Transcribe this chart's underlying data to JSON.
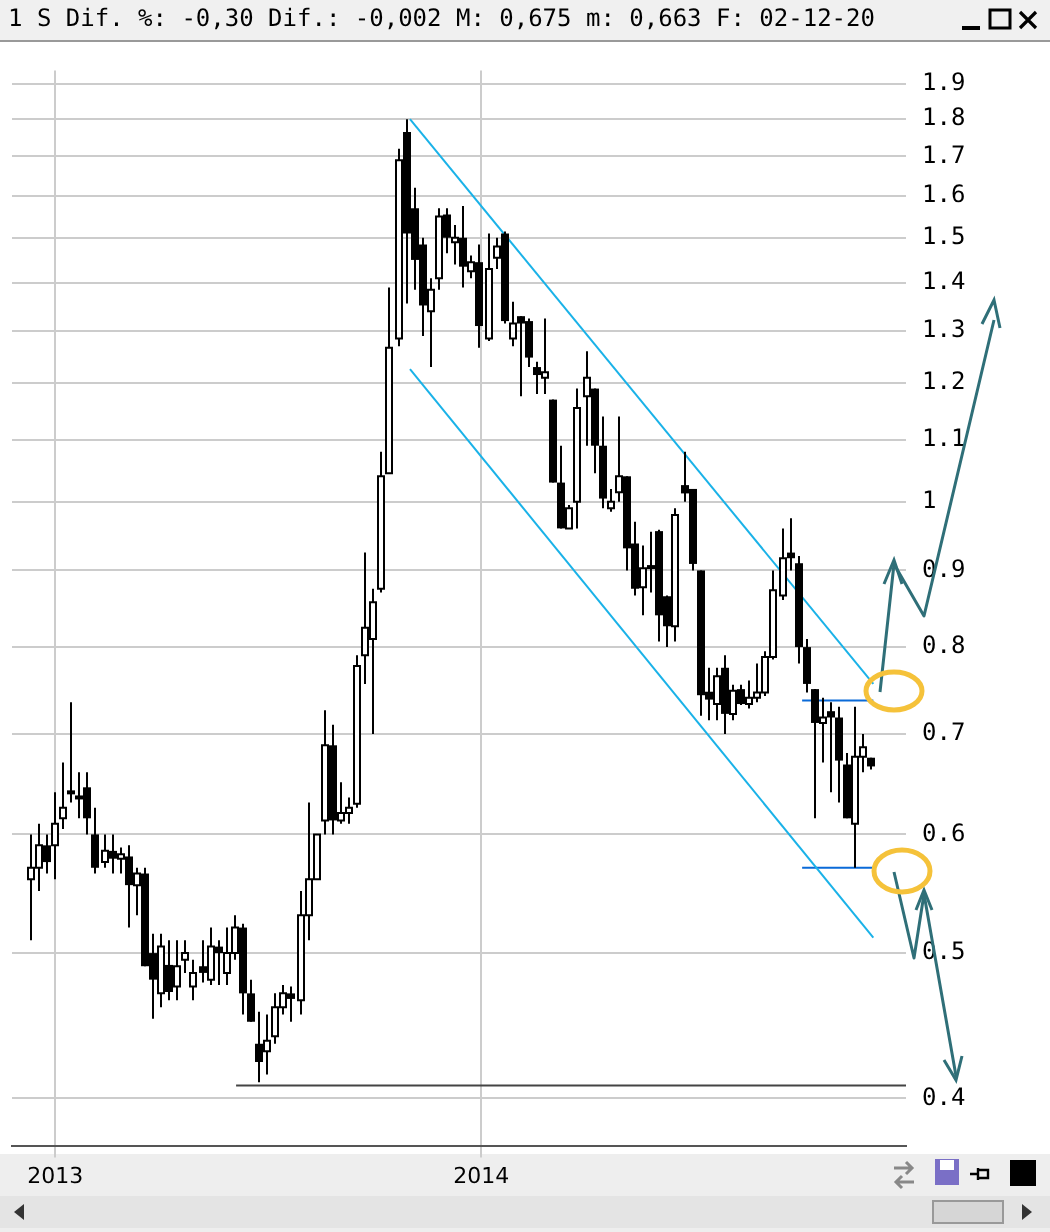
{
  "chart_data": {
    "type": "candlestick",
    "title": "1 S Dif. %: -0,30 Dif.: -0,002 M: 0,675 m: 0,663 F: 02-12-20",
    "log": "y",
    "grid": true,
    "legend": false,
    "xlim": [
      "2012-11-25",
      "2014-12-31"
    ],
    "xticks": [
      "2013",
      "2014"
    ],
    "ylim": [
      0.372,
      1.94
    ],
    "yticks": [
      0.4,
      0.5,
      0.6,
      0.7,
      0.8,
      0.9,
      1,
      1.1,
      1.2,
      1.3,
      1.4,
      1.5,
      1.6,
      1.7,
      1.8,
      1.9
    ],
    "x": [
      "2012-12-10",
      "2012-12-17",
      "2012-12-24",
      "2012-12-31",
      "2013-01-07",
      "2013-01-14",
      "2013-01-21",
      "2013-01-28",
      "2013-02-04",
      "2013-02-11",
      "2013-02-18",
      "2013-02-25",
      "2013-03-04",
      "2013-03-11",
      "2013-03-18",
      "2013-03-25",
      "2013-04-01",
      "2013-04-08",
      "2013-04-15",
      "2013-04-22",
      "2013-04-29",
      "2013-05-06",
      "2013-05-13",
      "2013-05-20",
      "2013-05-27",
      "2013-06-03",
      "2013-06-10",
      "2013-06-17",
      "2013-06-24",
      "2013-07-01",
      "2013-07-08",
      "2013-07-15",
      "2013-07-22",
      "2013-07-29",
      "2013-08-05",
      "2013-08-12",
      "2013-08-19",
      "2013-08-26",
      "2013-09-02",
      "2013-09-09",
      "2013-09-16",
      "2013-09-23",
      "2013-09-30",
      "2013-10-07",
      "2013-10-14",
      "2013-10-21",
      "2013-10-28",
      "2013-11-04",
      "2013-11-11",
      "2013-11-18",
      "2013-11-25",
      "2013-12-02",
      "2013-12-09",
      "2013-12-16",
      "2013-12-23",
      "2013-12-30",
      "2014-01-06",
      "2014-01-13",
      "2014-01-20",
      "2014-01-27",
      "2014-02-03",
      "2014-02-10",
      "2014-02-17",
      "2014-02-24",
      "2014-03-03",
      "2014-03-10",
      "2014-03-17",
      "2014-03-24",
      "2014-03-31",
      "2014-04-07",
      "2014-04-14",
      "2014-04-21",
      "2014-04-28",
      "2014-05-05",
      "2014-05-12",
      "2014-05-19",
      "2014-05-26",
      "2014-06-02",
      "2014-06-09",
      "2014-06-16",
      "2014-06-23",
      "2014-06-30",
      "2014-07-07",
      "2014-07-14",
      "2014-07-21",
      "2014-07-28",
      "2014-08-04",
      "2014-08-11",
      "2014-08-18",
      "2014-08-25",
      "2014-09-01",
      "2014-09-08",
      "2014-09-15",
      "2014-09-22",
      "2014-09-29",
      "2014-10-06",
      "2014-10-13",
      "2014-10-20",
      "2014-10-27",
      "2014-11-03",
      "2014-11-10",
      "2014-11-17",
      "2014-11-24",
      "2014-12-01"
    ],
    "ohlc": [
      [
        0.56,
        0.6,
        0.51,
        0.57
      ],
      [
        0.57,
        0.61,
        0.55,
        0.59
      ],
      [
        0.59,
        0.6,
        0.565,
        0.575
      ],
      [
        0.59,
        0.64,
        0.56,
        0.61
      ],
      [
        0.615,
        0.67,
        0.605,
        0.625
      ],
      [
        0.64,
        0.735,
        0.63,
        0.641
      ],
      [
        0.635,
        0.66,
        0.615,
        0.636
      ],
      [
        0.645,
        0.66,
        0.6,
        0.615
      ],
      [
        0.6,
        0.625,
        0.565,
        0.57
      ],
      [
        0.575,
        0.6,
        0.57,
        0.585
      ],
      [
        0.585,
        0.6,
        0.565,
        0.578
      ],
      [
        0.578,
        0.588,
        0.565,
        0.582
      ],
      [
        0.58,
        0.59,
        0.52,
        0.555
      ],
      [
        0.555,
        0.57,
        0.53,
        0.565
      ],
      [
        0.565,
        0.57,
        0.49,
        0.49
      ],
      [
        0.5,
        0.515,
        0.452,
        0.48
      ],
      [
        0.47,
        0.515,
        0.46,
        0.505
      ],
      [
        0.491,
        0.51,
        0.465,
        0.471
      ],
      [
        0.475,
        0.51,
        0.465,
        0.49
      ],
      [
        0.495,
        0.51,
        0.485,
        0.5
      ],
      [
        0.475,
        0.495,
        0.465,
        0.485
      ],
      [
        0.49,
        0.51,
        0.478,
        0.485
      ],
      [
        0.48,
        0.52,
        0.476,
        0.505
      ],
      [
        0.505,
        0.51,
        0.476,
        0.5
      ],
      [
        0.485,
        0.52,
        0.476,
        0.5
      ],
      [
        0.5,
        0.53,
        0.495,
        0.52
      ],
      [
        0.52,
        0.523,
        0.455,
        0.47
      ],
      [
        0.47,
        0.48,
        0.45,
        0.45
      ],
      [
        0.435,
        0.457,
        0.41,
        0.423
      ],
      [
        0.43,
        0.455,
        0.415,
        0.437
      ],
      [
        0.44,
        0.47,
        0.435,
        0.46
      ],
      [
        0.46,
        0.476,
        0.455,
        0.47
      ],
      [
        0.47,
        0.475,
        0.45,
        0.466
      ],
      [
        0.465,
        0.55,
        0.455,
        0.53
      ],
      [
        0.53,
        0.63,
        0.51,
        0.56
      ],
      [
        0.56,
        0.6,
        0.56,
        0.6
      ],
      [
        0.613,
        0.726,
        0.6,
        0.688
      ],
      [
        0.688,
        0.71,
        0.6,
        0.613
      ],
      [
        0.613,
        0.65,
        0.61,
        0.62
      ],
      [
        0.62,
        0.635,
        0.61,
        0.625
      ],
      [
        0.629,
        0.79,
        0.625,
        0.777
      ],
      [
        0.79,
        0.925,
        0.756,
        0.824
      ],
      [
        0.81,
        0.875,
        0.7,
        0.857
      ],
      [
        0.875,
        1.08,
        0.87,
        1.04
      ],
      [
        1.045,
        1.39,
        1.045,
        1.267
      ],
      [
        1.285,
        1.72,
        1.27,
        1.69
      ],
      [
        1.765,
        1.8,
        1.356,
        1.51
      ],
      [
        1.57,
        1.62,
        1.385,
        1.45
      ],
      [
        1.485,
        1.5,
        1.29,
        1.352
      ],
      [
        1.34,
        1.41,
        1.23,
        1.385
      ],
      [
        1.41,
        1.57,
        1.385,
        1.55
      ],
      [
        1.555,
        1.57,
        1.465,
        1.5
      ],
      [
        1.49,
        1.53,
        1.44,
        1.5
      ],
      [
        1.5,
        1.575,
        1.39,
        1.435
      ],
      [
        1.425,
        1.46,
        1.41,
        1.445
      ],
      [
        1.445,
        1.485,
        1.267,
        1.31
      ],
      [
        1.285,
        1.51,
        1.28,
        1.43
      ],
      [
        1.455,
        1.5,
        1.43,
        1.48
      ],
      [
        1.51,
        1.515,
        1.315,
        1.32
      ],
      [
        1.285,
        1.36,
        1.27,
        1.315
      ],
      [
        1.33,
        1.33,
        1.176,
        1.315
      ],
      [
        1.32,
        1.325,
        1.23,
        1.248
      ],
      [
        1.23,
        1.24,
        1.18,
        1.215
      ],
      [
        1.21,
        1.325,
        1.18,
        1.22
      ],
      [
        1.17,
        1.17,
        1.03,
        1.03
      ],
      [
        1.03,
        1.09,
        0.96,
        0.96
      ],
      [
        0.96,
        0.995,
        0.96,
        0.99
      ],
      [
        1.0,
        1.19,
        0.96,
        1.155
      ],
      [
        1.176,
        1.26,
        1.09,
        1.21
      ],
      [
        1.19,
        1.19,
        1.045,
        1.09
      ],
      [
        1.09,
        1.14,
        0.99,
        1.005
      ],
      [
        0.99,
        1.02,
        0.985,
        1.0
      ],
      [
        1.015,
        1.14,
        1.0,
        1.04
      ],
      [
        1.04,
        1.04,
        0.9,
        0.931
      ],
      [
        0.938,
        0.97,
        0.866,
        0.875
      ],
      [
        0.877,
        0.935,
        0.84,
        0.903
      ],
      [
        0.905,
        0.955,
        0.87,
        0.906
      ],
      [
        0.956,
        0.958,
        0.807,
        0.84
      ],
      [
        0.865,
        0.866,
        0.8,
        0.826
      ],
      [
        0.826,
        0.99,
        0.807,
        0.98
      ],
      [
        1.026,
        1.08,
        1.0,
        1.013
      ],
      [
        1.02,
        1.02,
        0.9,
        0.909
      ],
      [
        0.9,
        0.9,
        0.72,
        0.743
      ],
      [
        0.747,
        0.775,
        0.715,
        0.738
      ],
      [
        0.733,
        0.775,
        0.715,
        0.765
      ],
      [
        0.775,
        0.79,
        0.7,
        0.722
      ],
      [
        0.722,
        0.755,
        0.715,
        0.748
      ],
      [
        0.75,
        0.755,
        0.732,
        0.733
      ],
      [
        0.733,
        0.76,
        0.728,
        0.74
      ],
      [
        0.74,
        0.78,
        0.735,
        0.746
      ],
      [
        0.746,
        0.795,
        0.742,
        0.788
      ],
      [
        0.788,
        0.9,
        0.785,
        0.873
      ],
      [
        0.866,
        0.96,
        0.86,
        0.917
      ],
      [
        0.925,
        0.975,
        0.9,
        0.917
      ],
      [
        0.91,
        0.92,
        0.78,
        0.8
      ],
      [
        0.8,
        0.81,
        0.746,
        0.756
      ],
      [
        0.75,
        0.75,
        0.615,
        0.712
      ],
      [
        0.712,
        0.74,
        0.67,
        0.718
      ],
      [
        0.725,
        0.735,
        0.64,
        0.718
      ],
      [
        0.718,
        0.73,
        0.63,
        0.672
      ],
      [
        0.668,
        0.68,
        0.615,
        0.615
      ],
      [
        0.61,
        0.73,
        0.57,
        0.676
      ],
      [
        0.676,
        0.7,
        0.66,
        0.686
      ],
      [
        0.675,
        0.675,
        0.663,
        0.666
      ]
    ],
    "marker": "none",
    "series": [
      {
        "type": "line",
        "color": "#1ab2e8",
        "x": [
          "2013-11-01",
          "2014-12-03"
        ],
        "values": [
          1.8,
          0.756
        ]
      },
      {
        "type": "line",
        "color": "#1ab2e8",
        "x": [
          "2013-11-01",
          "2014-12-03"
        ],
        "values": [
          1.226,
          0.512
        ]
      },
      {
        "type": "line",
        "color": "#444444",
        "x": [
          "2013-06-05",
          "2014-12-31"
        ],
        "values": [
          0.408,
          0.408
        ]
      },
      {
        "type": "line",
        "color": "#0a6ad8",
        "x": [
          "2014-10-03",
          "2014-12-03"
        ],
        "values": [
          0.737,
          0.737
        ]
      },
      {
        "type": "line",
        "color": "#0a6ad8",
        "x": [
          "2014-10-03",
          "2014-12-03"
        ],
        "values": [
          0.57,
          0.57
        ]
      }
    ]
  }
}
